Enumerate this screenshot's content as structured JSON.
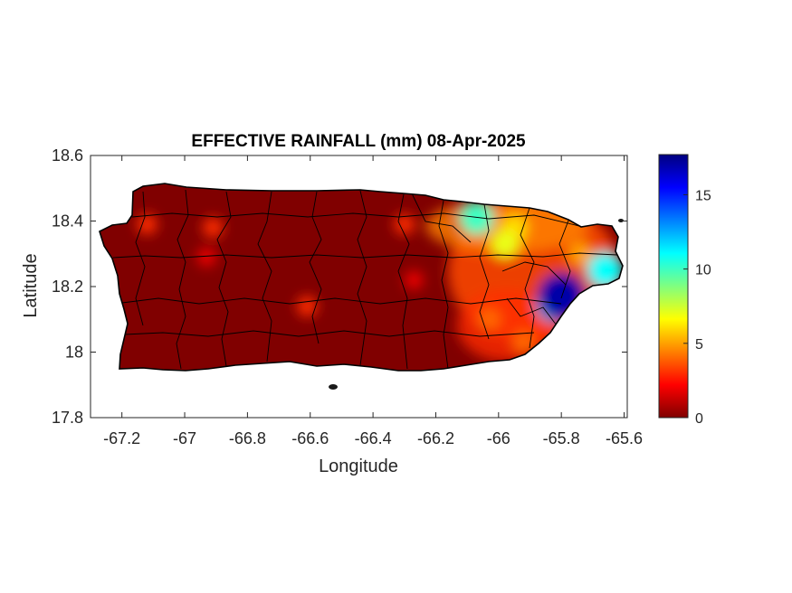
{
  "chart_data": {
    "type": "heatmap",
    "title": "EFFECTIVE RAINFALL (mm) 08-Apr-2025",
    "xlabel": "Longitude",
    "ylabel": "Latitude",
    "xlim": [
      -67.3,
      -65.59
    ],
    "ylim": [
      17.8,
      18.6
    ],
    "x_ticks": [
      -67.2,
      -67,
      -66.8,
      -66.6,
      -66.4,
      -66.2,
      -66,
      -65.8,
      -65.6
    ],
    "x_tick_labels": [
      "-67.2",
      "-67",
      "-66.8",
      "-66.6",
      "-66.4",
      "-66.2",
      "-66",
      "-65.8",
      "-65.6"
    ],
    "y_ticks": [
      17.8,
      18,
      18.2,
      18.4,
      18.6
    ],
    "y_tick_labels": [
      "17.8",
      "18",
      "18.2",
      "18.4",
      "18.6"
    ],
    "colorbar": {
      "colormap": "jet",
      "min": 0,
      "max": 17.7,
      "ticks": [
        0,
        5,
        10,
        15
      ],
      "tick_labels": [
        "0",
        "5",
        "10",
        "15"
      ]
    },
    "grid": false,
    "background_value_mm": 0,
    "hotspots": [
      {
        "lon": -65.8,
        "lat": 18.17,
        "value": 17
      },
      {
        "lon": -65.82,
        "lat": 18.15,
        "value": 12
      },
      {
        "lon": -65.66,
        "lat": 18.25,
        "value": 11
      },
      {
        "lon": -66.07,
        "lat": 18.41,
        "value": 10
      },
      {
        "lon": -65.98,
        "lat": 18.33,
        "value": 7
      },
      {
        "lon": -65.95,
        "lat": 18.38,
        "value": 6
      },
      {
        "lon": -65.74,
        "lat": 18.3,
        "value": 5
      },
      {
        "lon": -66.03,
        "lat": 18.1,
        "value": 4
      },
      {
        "lon": -65.92,
        "lat": 18.03,
        "value": 4
      },
      {
        "lon": -66.3,
        "lat": 18.39,
        "value": 3
      },
      {
        "lon": -66.27,
        "lat": 18.22,
        "value": 2
      },
      {
        "lon": -67.12,
        "lat": 18.39,
        "value": 3
      },
      {
        "lon": -66.91,
        "lat": 18.38,
        "value": 3
      },
      {
        "lon": -66.61,
        "lat": 18.14,
        "value": 3
      },
      {
        "lon": -66.93,
        "lat": 18.29,
        "value": 2
      }
    ]
  }
}
